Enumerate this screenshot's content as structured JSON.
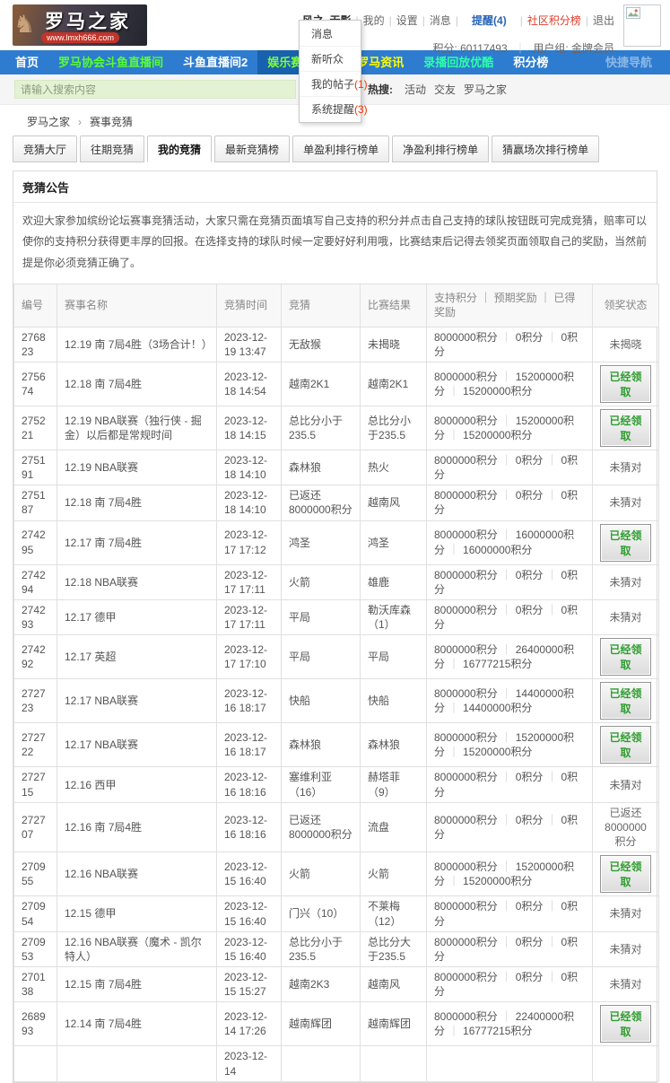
{
  "header": {
    "logo_title": "罗马之家",
    "logo_url": "www.lmxh666.com",
    "user_links": [
      {
        "label": "风之_无影",
        "style": "name"
      },
      {
        "label": "我的",
        "style": "plain"
      },
      {
        "label": "设置",
        "style": "plain"
      },
      {
        "label": "消息",
        "style": "plain"
      },
      {
        "label": "提醒(4)",
        "style": "notice"
      },
      {
        "label": "社区积分榜",
        "style": "red"
      },
      {
        "label": "退出",
        "style": "plain"
      }
    ],
    "points_label": "积分: 60117493",
    "group_label": "用户组: 金牌会员"
  },
  "dropdown": {
    "items": [
      {
        "label": "消息",
        "badge": ""
      },
      {
        "label": "新听众",
        "badge": ""
      },
      {
        "label": "我的帖子",
        "badge": "(1)"
      },
      {
        "label": "系统提醒",
        "badge": "(3)"
      }
    ]
  },
  "nav": {
    "items": [
      {
        "label": "首页",
        "color": "#ffffff",
        "selected": false
      },
      {
        "label": "罗马协会斗鱼直播间",
        "color": "#58ff2e",
        "selected": false
      },
      {
        "label": "斗鱼直播间2",
        "color": "#ffffff",
        "selected": false
      },
      {
        "label": "娱乐赛事竞猜",
        "color": "#7dff36",
        "selected": true
      },
      {
        "label": "罗马资讯",
        "color": "#ffff00",
        "selected": false
      },
      {
        "label": "录播回放优酷",
        "color": "#2bffa8",
        "selected": false
      },
      {
        "label": "积分榜",
        "color": "#ffffff",
        "selected": false
      }
    ],
    "quick_nav": "快捷导航"
  },
  "search": {
    "placeholder": "请输入搜索内容",
    "hot_label": "热搜:",
    "hot_links": [
      "活动",
      "交友",
      "罗马之家"
    ]
  },
  "breadcrumb": {
    "home": "罗马之家",
    "separator": "›",
    "current": "赛事竞猜"
  },
  "tabs": [
    {
      "label": "竞猜大厅",
      "active": false
    },
    {
      "label": "往期竞猜",
      "active": false
    },
    {
      "label": "我的竞猜",
      "active": true
    },
    {
      "label": "最新竞猜榜",
      "active": false
    },
    {
      "label": "单盈利排行榜单",
      "active": false
    },
    {
      "label": "净盈利排行榜单",
      "active": false
    },
    {
      "label": "猜赢场次排行榜单",
      "active": false
    }
  ],
  "notice": {
    "title": "竞猜公告",
    "text": "欢迎大家参加缤纷论坛赛事竞猜活动，大家只需在竞猜页面填写自己支持的积分并点击自己支持的球队按钮既可完成竞猜，赔率可以使你的支持积分获得更丰厚的回报。在选择支持的球队时候一定要好好利用哦，比赛结束后记得去领奖页面领取自己的奖励，当然前提是你必须竞猜正确了。"
  },
  "table": {
    "headers": [
      "编号",
      "赛事名称",
      "竞猜时间",
      "竞猜",
      "比赛结果",
      "支持积分 ｜ 预期奖励 ｜ 已得奖励",
      "领奖状态"
    ],
    "rows": [
      {
        "id": "276823",
        "name": "12.19 南 7局4胜（3场合计！）",
        "time": "2023-12-19 13:47",
        "bet": "无敌猴",
        "result": "未揭晓",
        "points": [
          "8000000积分",
          "0积分",
          "0积分"
        ],
        "status": {
          "type": "text",
          "label": "未揭晓"
        }
      },
      {
        "id": "275674",
        "name": "12.18 南 7局4胜",
        "time": "2023-12-18 14:54",
        "bet": "越南2K1",
        "result": "越南2K1",
        "points": [
          "8000000积分",
          "15200000积分",
          "15200000积分"
        ],
        "status": {
          "type": "button",
          "label": "已经领取"
        }
      },
      {
        "id": "275221",
        "name": "12.19 NBA联赛（独行侠 - 掘金）以后都是常规时间",
        "time": "2023-12-18 14:15",
        "bet": "总比分小于235.5",
        "result": "总比分小于235.5",
        "points": [
          "8000000积分",
          "15200000积分",
          "15200000积分"
        ],
        "status": {
          "type": "button",
          "label": "已经领取"
        }
      },
      {
        "id": "275191",
        "name": "12.19 NBA联赛",
        "time": "2023-12-18 14:10",
        "bet": "森林狼",
        "result": "热火",
        "points": [
          "8000000积分",
          "0积分",
          "0积分"
        ],
        "status": {
          "type": "text",
          "label": "未猜对"
        }
      },
      {
        "id": "275187",
        "name": "12.18 南 7局4胜",
        "time": "2023-12-18 14:10",
        "bet": "已返还8000000积分",
        "result": "越南风",
        "points": [
          "8000000积分",
          "0积分",
          "0积分"
        ],
        "status": {
          "type": "text",
          "label": "未猜对"
        }
      },
      {
        "id": "274295",
        "name": "12.17 南 7局4胜",
        "time": "2023-12-17 17:12",
        "bet": "鸿圣",
        "result": "鸿圣",
        "points": [
          "8000000积分",
          "16000000积分",
          "16000000积分"
        ],
        "status": {
          "type": "button",
          "label": "已经领取"
        }
      },
      {
        "id": "274294",
        "name": "12.18 NBA联赛",
        "time": "2023-12-17 17:11",
        "bet": "火箭",
        "result": "雄鹿",
        "points": [
          "8000000积分",
          "0积分",
          "0积分"
        ],
        "status": {
          "type": "text",
          "label": "未猜对"
        }
      },
      {
        "id": "274293",
        "name": "12.17 德甲",
        "time": "2023-12-17 17:11",
        "bet": "平局",
        "result": "勒沃库森（1）",
        "points": [
          "8000000积分",
          "0积分",
          "0积分"
        ],
        "status": {
          "type": "text",
          "label": "未猜对"
        }
      },
      {
        "id": "274292",
        "name": "12.17 英超",
        "time": "2023-12-17 17:10",
        "bet": "平局",
        "result": "平局",
        "points": [
          "8000000积分",
          "26400000积分",
          "16777215积分"
        ],
        "status": {
          "type": "button",
          "label": "已经领取"
        }
      },
      {
        "id": "272723",
        "name": "12.17 NBA联赛",
        "time": "2023-12-16 18:17",
        "bet": "快船",
        "result": "快船",
        "points": [
          "8000000积分",
          "14400000积分",
          "14400000积分"
        ],
        "status": {
          "type": "button",
          "label": "已经领取"
        }
      },
      {
        "id": "272722",
        "name": "12.17 NBA联赛",
        "time": "2023-12-16 18:17",
        "bet": "森林狼",
        "result": "森林狼",
        "points": [
          "8000000积分",
          "15200000积分",
          "15200000积分"
        ],
        "status": {
          "type": "button",
          "label": "已经领取"
        }
      },
      {
        "id": "272715",
        "name": "12.16 西甲",
        "time": "2023-12-16 18:16",
        "bet": "塞维利亚（16）",
        "result": "赫塔菲（9）",
        "points": [
          "8000000积分",
          "0积分",
          "0积分"
        ],
        "status": {
          "type": "text",
          "label": "未猜对"
        }
      },
      {
        "id": "272707",
        "name": "12.16 南 7局4胜",
        "time": "2023-12-16 18:16",
        "bet": "已返还8000000积分",
        "result": "流盘",
        "points": [
          "8000000积分",
          "0积分",
          "0积分"
        ],
        "status": {
          "type": "text",
          "label": "已返还8000000积分"
        }
      },
      {
        "id": "270955",
        "name": "12.16 NBA联赛",
        "time": "2023-12-15 16:40",
        "bet": "火箭",
        "result": "火箭",
        "points": [
          "8000000积分",
          "15200000积分",
          "15200000积分"
        ],
        "status": {
          "type": "button",
          "label": "已经领取"
        }
      },
      {
        "id": "270954",
        "name": "12.15 德甲",
        "time": "2023-12-15 16:40",
        "bet": "门兴（10）",
        "result": "不莱梅（12）",
        "points": [
          "8000000积分",
          "0积分",
          "0积分"
        ],
        "status": {
          "type": "text",
          "label": "未猜对"
        }
      },
      {
        "id": "270953",
        "name": "12.16 NBA联赛（魔术 - 凯尔特人）",
        "time": "2023-12-15 16:40",
        "bet": "总比分小于235.5",
        "result": "总比分大于235.5",
        "points": [
          "8000000积分",
          "0积分",
          "0积分"
        ],
        "status": {
          "type": "text",
          "label": "未猜对"
        }
      },
      {
        "id": "270138",
        "name": "12.15 南 7局4胜",
        "time": "2023-12-15 15:27",
        "bet": "越南2K3",
        "result": "越南风",
        "points": [
          "8000000积分",
          "0积分",
          "0积分"
        ],
        "status": {
          "type": "text",
          "label": "未猜对"
        }
      },
      {
        "id": "268993",
        "name": "12.14 南 7局4胜",
        "time": "2023-12-14 17:26",
        "bet": "越南辉团",
        "result": "越南辉团",
        "points": [
          "8000000积分",
          "22400000积分",
          "16777215积分"
        ],
        "status": {
          "type": "button",
          "label": "已经领取"
        }
      },
      {
        "id": "",
        "name": "",
        "time": "2023-12-14",
        "bet": "",
        "result": "",
        "points": [],
        "status": {
          "type": "none",
          "label": ""
        }
      }
    ]
  },
  "colors": {
    "nav_blue": "#2e7cd0",
    "nav_selected_blue": "#1861ae",
    "claim_green": "#2f9d2f",
    "badge_red": "#f33000",
    "link_red": "#e23b2a",
    "search_input_green": "#e4f2d4"
  }
}
